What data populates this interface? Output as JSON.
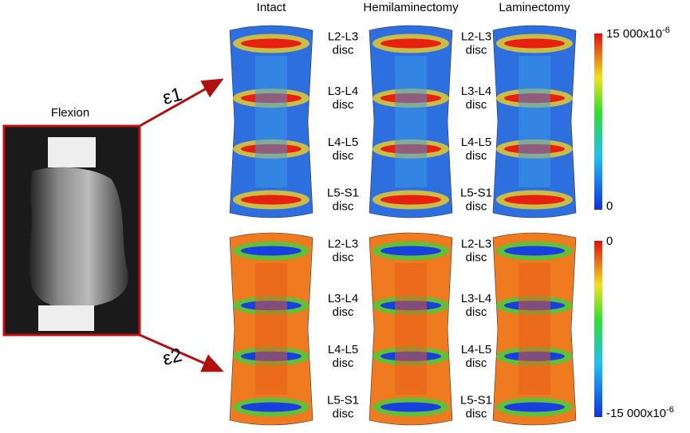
{
  "photo": {
    "label": "Flexion"
  },
  "columns": [
    "Intact",
    "Hemilaminectomy",
    "Laminectomy"
  ],
  "rows": [
    {
      "strain": "ε1",
      "scale": {
        "top": {
          "text": "15 000x10",
          "sup": "-6"
        },
        "bottom": {
          "text": "0"
        }
      },
      "disc_groups": [
        [
          {
            "level": "L2-L3",
            "word": "disc"
          },
          {
            "level": "L3-L4",
            "word": "disc"
          },
          {
            "level": "L4-L5",
            "word": "disc"
          },
          {
            "level": "L5-S1",
            "word": "disc"
          }
        ],
        [
          {
            "level": "L2-L3",
            "word": "disc"
          },
          {
            "level": "L3-L4",
            "word": "disc"
          },
          {
            "level": "L4-L5",
            "word": "disc"
          },
          {
            "level": "L5-S1",
            "word": "disc"
          }
        ]
      ]
    },
    {
      "strain": "ε2",
      "scale": {
        "top": {
          "text": "0"
        },
        "bottom": {
          "text": "-15 000x10",
          "sup": "-6"
        }
      },
      "disc_groups": [
        [
          {
            "level": "L2-L3",
            "word": "disc"
          },
          {
            "level": "L3-L4",
            "word": "disc"
          },
          {
            "level": "L4-L5",
            "word": "disc"
          },
          {
            "level": "L5-S1",
            "word": "disc"
          }
        ],
        [
          {
            "level": "L2-L3",
            "word": "disc"
          },
          {
            "level": "L3-L4",
            "word": "disc"
          },
          {
            "level": "L4-L5",
            "word": "disc"
          },
          {
            "level": "L5-S1",
            "word": "disc"
          }
        ]
      ]
    }
  ]
}
